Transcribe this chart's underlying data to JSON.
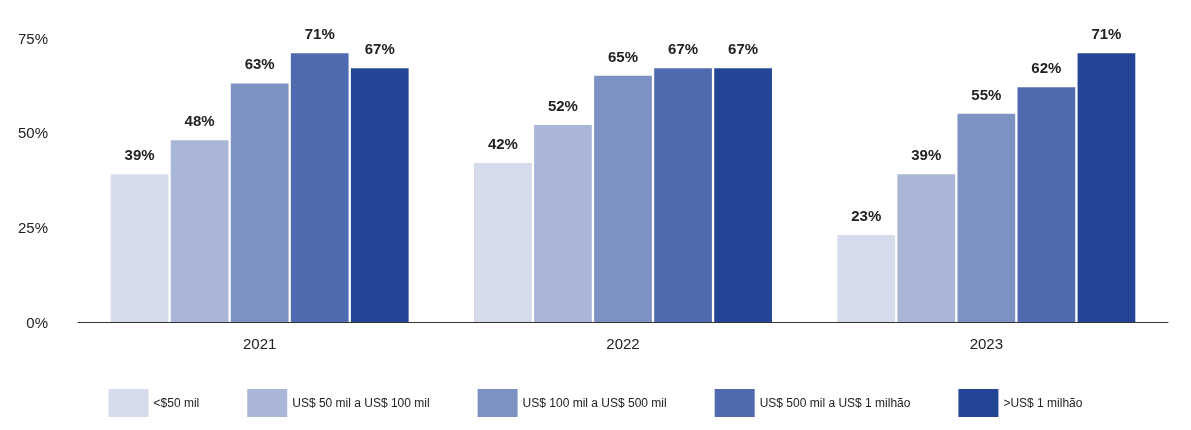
{
  "chart_data": {
    "type": "bar",
    "categories": [
      "2021",
      "2022",
      "2023"
    ],
    "series": [
      {
        "name": "<$50 mil",
        "color": "#d5dbea",
        "values": [
          39,
          42,
          23
        ],
        "value_labels": [
          "39%",
          "42%",
          "23%"
        ]
      },
      {
        "name": "US$ 50 mil a US$ 100 mil",
        "color": "#a9b6d8",
        "values": [
          48,
          52,
          39
        ],
        "value_labels": [
          "48%",
          "52%",
          "39%"
        ]
      },
      {
        "name": "US$ 100 mil a US$ 500 mil",
        "color": "#7d92c3",
        "values": [
          63,
          65,
          55
        ],
        "value_labels": [
          "63%",
          "65%",
          "55%"
        ]
      },
      {
        "name": "US$ 500 mil a US$ 1 milhão",
        "color": "#4f6aae",
        "values": [
          71,
          67,
          62
        ],
        "value_labels": [
          "71%",
          "67%",
          "62%"
        ]
      },
      {
        "name": ">US$ 1 milhão",
        "color": "#244596",
        "values": [
          67,
          67,
          71
        ],
        "value_labels": [
          "67%",
          "67%",
          "71%"
        ]
      }
    ],
    "ylim": [
      0,
      75
    ],
    "yticks": [
      {
        "value": 0,
        "label": "0%"
      },
      {
        "value": 25,
        "label": "25%"
      },
      {
        "value": 50,
        "label": "50%"
      },
      {
        "value": 75,
        "label": "75%"
      }
    ],
    "grid": false,
    "legend": "bottom"
  }
}
